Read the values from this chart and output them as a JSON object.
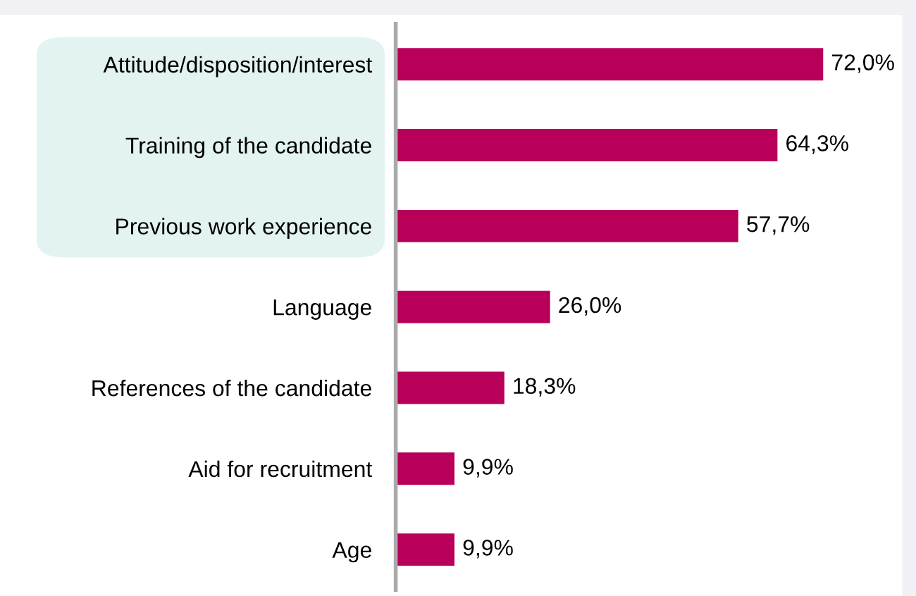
{
  "chart_data": {
    "type": "bar",
    "orientation": "horizontal",
    "categories": [
      "Attitude/disposition/interest",
      "Training of the candidate",
      "Previous work experience",
      "Language",
      "References of the candidate",
      "Aid for recruitment",
      "Age"
    ],
    "values": [
      72.0,
      64.3,
      57.7,
      26.0,
      18.3,
      9.9,
      9.9
    ],
    "value_labels": [
      "72,0%",
      "64,3%",
      "57,7%",
      "26,0%",
      "18,3%",
      "9,9%",
      "9,9%"
    ],
    "color": "#b8005a"
  }
}
